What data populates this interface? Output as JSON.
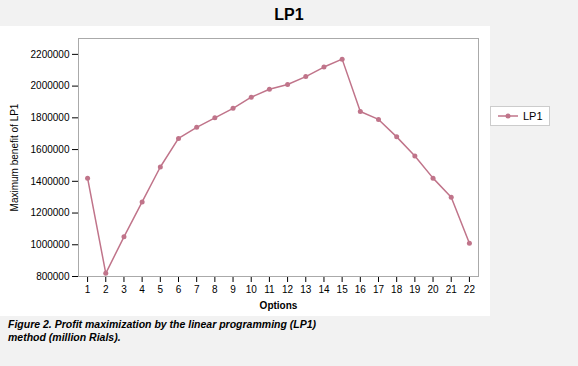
{
  "chart_data": {
    "type": "line",
    "title": "LP1",
    "xlabel": "Options",
    "ylabel": "Maximum benefit of LP1",
    "caption": "Figure 2.  Profit maximization by the linear programming (LP1)\nmethod (million Rials).",
    "x": [
      1,
      2,
      3,
      4,
      5,
      6,
      7,
      8,
      9,
      10,
      11,
      12,
      13,
      14,
      15,
      16,
      17,
      18,
      19,
      20,
      21,
      22
    ],
    "series": [
      {
        "name": "LP1",
        "color": "#c0748a",
        "marker": "circle",
        "line_style": "solid",
        "values": [
          1420000,
          820000,
          1050000,
          1270000,
          1490000,
          1670000,
          1740000,
          1800000,
          1860000,
          1930000,
          1980000,
          2010000,
          2060000,
          2120000,
          2170000,
          1840000,
          1790000,
          1680000,
          1560000,
          1420000,
          1300000,
          1010000
        ]
      }
    ],
    "xlim": [
      0.5,
      22.5
    ],
    "xticks": [
      1,
      2,
      3,
      4,
      5,
      6,
      7,
      8,
      9,
      10,
      11,
      12,
      13,
      14,
      15,
      16,
      17,
      18,
      19,
      20,
      21,
      22
    ],
    "ylim": [
      800000,
      2300000
    ],
    "yticks": [
      800000,
      1000000,
      1200000,
      1400000,
      1600000,
      1800000,
      2000000,
      2200000
    ],
    "grid": false,
    "legend": "right"
  }
}
